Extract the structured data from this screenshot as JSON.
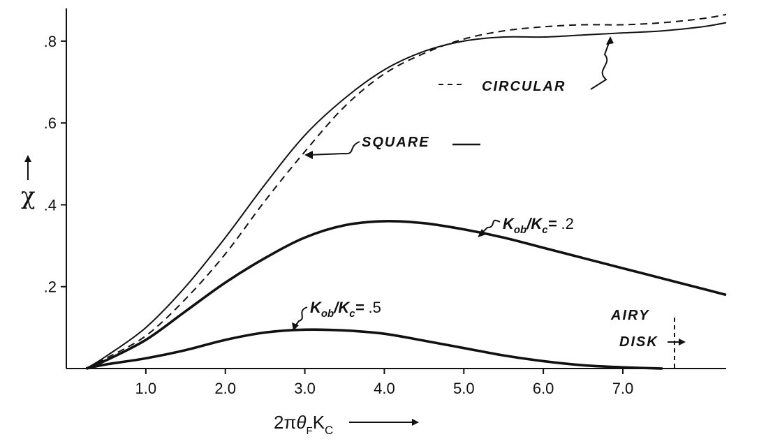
{
  "chart_data": {
    "type": "line",
    "xlabel_parts": {
      "pre": "2",
      "pi": "π",
      "theta": "θ",
      "sub_f": "F",
      "k": "K",
      "sub_c": "C"
    },
    "ylabel": "χ",
    "xlim": [
      0,
      8.3
    ],
    "ylim": [
      0,
      0.88
    ],
    "x_ticks": [
      1.0,
      2.0,
      3.0,
      4.0,
      5.0,
      6.0,
      7.0
    ],
    "x_tick_labels": [
      "1.0",
      "2.0",
      "3.0",
      "4.0",
      "5.0",
      "6.0",
      "7.0"
    ],
    "y_ticks": [
      0.2,
      0.4,
      0.6,
      0.8
    ],
    "y_tick_labels": [
      ".2",
      ".4",
      ".6",
      ".8"
    ],
    "series": [
      {
        "name": "SQUARE",
        "style": "solid-thin",
        "x": [
          0.25,
          0.5,
          1.0,
          1.5,
          2.0,
          2.5,
          3.0,
          3.5,
          4.0,
          4.5,
          5.0,
          5.5,
          6.0,
          6.5,
          7.0,
          7.5,
          8.0,
          8.3
        ],
        "y": [
          0.0,
          0.03,
          0.1,
          0.2,
          0.32,
          0.45,
          0.57,
          0.66,
          0.73,
          0.775,
          0.8,
          0.81,
          0.81,
          0.815,
          0.82,
          0.825,
          0.835,
          0.845
        ]
      },
      {
        "name": "CIRCULAR",
        "style": "dashed",
        "x": [
          0.25,
          0.5,
          1.0,
          1.5,
          2.0,
          2.5,
          3.0,
          3.5,
          4.0,
          4.5,
          5.0,
          5.5,
          6.0,
          6.5,
          7.0,
          7.5,
          8.0,
          8.3
        ],
        "y": [
          0.0,
          0.025,
          0.08,
          0.17,
          0.28,
          0.41,
          0.53,
          0.64,
          0.72,
          0.77,
          0.805,
          0.825,
          0.835,
          0.84,
          0.84,
          0.845,
          0.855,
          0.865
        ]
      },
      {
        "name": "Kob/Kc = .2",
        "style": "solid-thick",
        "x": [
          0.25,
          0.5,
          1.0,
          1.5,
          2.0,
          2.5,
          3.0,
          3.5,
          4.0,
          4.5,
          5.0,
          5.5,
          6.0,
          6.5,
          7.0,
          7.5,
          8.0,
          8.3
        ],
        "y": [
          0.0,
          0.02,
          0.07,
          0.14,
          0.21,
          0.27,
          0.32,
          0.35,
          0.36,
          0.355,
          0.34,
          0.32,
          0.295,
          0.27,
          0.245,
          0.22,
          0.195,
          0.18
        ]
      },
      {
        "name": "Kob/Kc = .5",
        "style": "solid-thick",
        "x": [
          0.25,
          0.5,
          1.0,
          1.5,
          2.0,
          2.5,
          3.0,
          3.5,
          4.0,
          4.5,
          5.0,
          5.5,
          6.0,
          6.5,
          7.0,
          7.5
        ],
        "y": [
          0.0,
          0.01,
          0.025,
          0.045,
          0.07,
          0.088,
          0.095,
          0.093,
          0.085,
          0.068,
          0.05,
          0.032,
          0.018,
          0.008,
          0.003,
          0.0
        ]
      }
    ],
    "annotations": {
      "circular": "CIRCULAR",
      "square": "SQUARE",
      "k02_main": "K",
      "k02_ob": "ob",
      "k02_slash": "/K",
      "k02_c": "c",
      "k02_eq": "= ",
      "k02_val": ".2",
      "k05_main": "K",
      "k05_ob": "ob",
      "k05_slash": "/K",
      "k05_c": "c",
      "k05_eq": "= ",
      "k05_val": ".5",
      "airy1": "AIRY",
      "airy2": "DISK",
      "airy_x": 7.65
    },
    "grid": false,
    "legend": "none"
  }
}
